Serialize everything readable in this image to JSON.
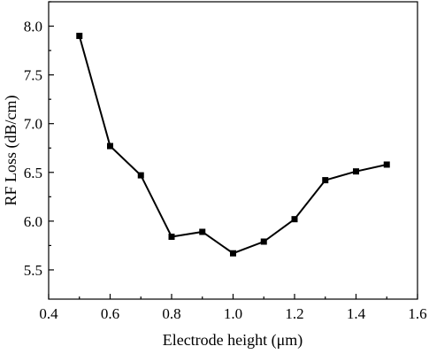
{
  "chart_data": {
    "type": "line",
    "xlabel": "Electrode height (μm)",
    "ylabel": "RF Loss (dB/cm)",
    "xlim": [
      0.4,
      1.6
    ],
    "ylim": [
      5.2,
      8.25
    ],
    "x_ticks": [
      "0.4",
      "0.6",
      "0.8",
      "1.0",
      "1.2",
      "1.4",
      "1.6"
    ],
    "y_ticks": [
      "5.5",
      "6.0",
      "6.5",
      "7.0",
      "7.5",
      "8.0"
    ],
    "grid": false,
    "series": [
      {
        "marker": "square",
        "color": "#000000",
        "x": [
          0.5,
          0.6,
          0.7,
          0.8,
          0.9,
          1.0,
          1.1,
          1.2,
          1.3,
          1.4,
          1.5
        ],
        "y": [
          7.9,
          6.77,
          6.47,
          5.84,
          5.89,
          5.67,
          5.79,
          6.02,
          6.42,
          6.51,
          6.58
        ]
      }
    ]
  }
}
